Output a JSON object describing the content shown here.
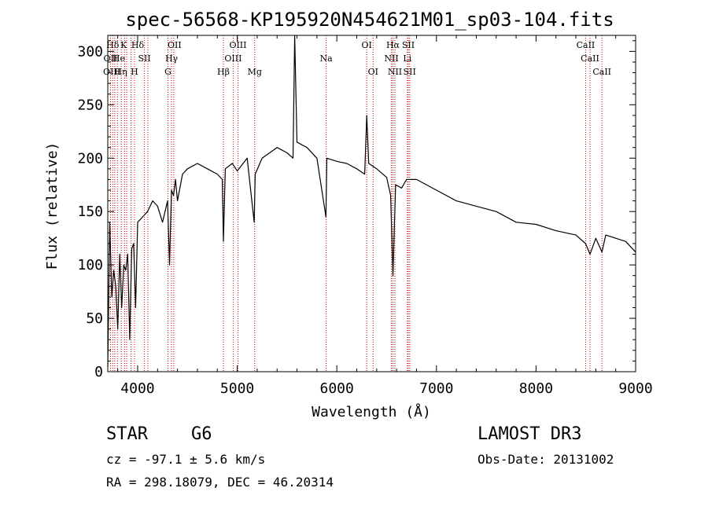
{
  "chart_data": {
    "type": "line",
    "title": "spec-56568-KP195920N454621M01_sp03-104.fits",
    "xlabel": "Wavelength (Å)",
    "ylabel": "Flux (relative)",
    "xlim": [
      3700,
      9000
    ],
    "ylim": [
      0,
      315
    ],
    "x_ticks": [
      4000,
      5000,
      6000,
      7000,
      8000,
      9000
    ],
    "y_ticks": [
      0,
      50,
      100,
      150,
      200,
      250,
      300
    ],
    "series": [
      {
        "name": "flux",
        "x": [
          3700,
          3720,
          3740,
          3760,
          3780,
          3800,
          3820,
          3840,
          3860,
          3880,
          3900,
          3920,
          3940,
          3960,
          3980,
          4000,
          4050,
          4100,
          4150,
          4200,
          4250,
          4300,
          4320,
          4340,
          4360,
          4380,
          4400,
          4450,
          4500,
          4600,
          4700,
          4800,
          4850,
          4861,
          4880,
          4950,
          5000,
          5100,
          5170,
          5180,
          5250,
          5400,
          5500,
          5560,
          5577,
          5600,
          5700,
          5800,
          5890,
          5900,
          6000,
          6100,
          6200,
          6280,
          6300,
          6320,
          6400,
          6500,
          6540,
          6563,
          6590,
          6650,
          6700,
          6800,
          7000,
          7200,
          7400,
          7600,
          7800,
          8000,
          8200,
          8400,
          8498,
          8542,
          8600,
          8662,
          8700,
          8800,
          8900,
          9000
        ],
        "y": [
          5,
          140,
          70,
          95,
          80,
          40,
          110,
          60,
          100,
          95,
          110,
          30,
          115,
          120,
          60,
          140,
          145,
          150,
          160,
          155,
          140,
          160,
          100,
          170,
          165,
          180,
          160,
          185,
          190,
          195,
          190,
          185,
          180,
          122,
          190,
          195,
          188,
          200,
          140,
          185,
          200,
          210,
          205,
          200,
          315,
          215,
          210,
          200,
          145,
          200,
          197,
          195,
          190,
          185,
          240,
          195,
          190,
          182,
          165,
          90,
          175,
          172,
          180,
          180,
          170,
          160,
          155,
          150,
          140,
          138,
          132,
          128,
          120,
          110,
          125,
          112,
          128,
          125,
          122,
          112
        ]
      }
    ],
    "spectral_lines": [
      {
        "label": "Hδ",
        "x": 3750,
        "row": 0
      },
      {
        "label": "K",
        "x": 3860,
        "row": 0
      },
      {
        "label": "Hδ",
        "x": 4000,
        "row": 0
      },
      {
        "label": "OII",
        "x": 4370,
        "row": 0
      },
      {
        "label": "OIII",
        "x": 5007,
        "row": 0
      },
      {
        "label": "OI",
        "x": 6300,
        "row": 0
      },
      {
        "label": "Hα",
        "x": 6563,
        "row": 0
      },
      {
        "label": "SII",
        "x": 6717,
        "row": 0
      },
      {
        "label": "CaII",
        "x": 8498,
        "row": 0
      },
      {
        "label": "OII",
        "x": 3727,
        "row": 1
      },
      {
        "label": "He",
        "x": 3810,
        "row": 1
      },
      {
        "label": "SII",
        "x": 4068,
        "row": 1
      },
      {
        "label": "Hγ",
        "x": 4340,
        "row": 1
      },
      {
        "label": "OIII",
        "x": 4959,
        "row": 1
      },
      {
        "label": "Na",
        "x": 5893,
        "row": 1
      },
      {
        "label": "NII",
        "x": 6548,
        "row": 1
      },
      {
        "label": "Li",
        "x": 6708,
        "row": 1
      },
      {
        "label": "CaII",
        "x": 8542,
        "row": 1
      },
      {
        "label": "OIII",
        "x": 3740,
        "row": 2
      },
      {
        "label": "Hη",
        "x": 3830,
        "row": 2
      },
      {
        "label": "H",
        "x": 3968,
        "row": 2
      },
      {
        "label": "G",
        "x": 4304,
        "row": 2
      },
      {
        "label": "Hβ",
        "x": 4861,
        "row": 2
      },
      {
        "label": "Mg",
        "x": 5175,
        "row": 2
      },
      {
        "label": "OI",
        "x": 6364,
        "row": 2
      },
      {
        "label": "NII",
        "x": 6583,
        "row": 2
      },
      {
        "label": "SII",
        "x": 6731,
        "row": 2
      },
      {
        "label": "CaII",
        "x": 8662,
        "row": 2
      }
    ],
    "line_markers": [
      3727,
      3750,
      3770,
      3797,
      3835,
      3869,
      3889,
      3934,
      3968,
      4068,
      4102,
      4304,
      4340,
      4363,
      4861,
      4959,
      5007,
      5175,
      5893,
      6300,
      6364,
      6548,
      6563,
      6583,
      6708,
      6717,
      6731,
      8498,
      8542,
      8662
    ]
  },
  "info": {
    "object_type": "STAR",
    "subclass": "G6",
    "cz": "cz = -97.1 ± 5.6 km/s",
    "coords": "RA = 298.18079, DEC =  46.20314",
    "survey": "LAMOST DR3",
    "obs_date": "Obs-Date: 20131002"
  },
  "colors": {
    "line_marker": "#cc0000",
    "spectrum": "#000000"
  }
}
